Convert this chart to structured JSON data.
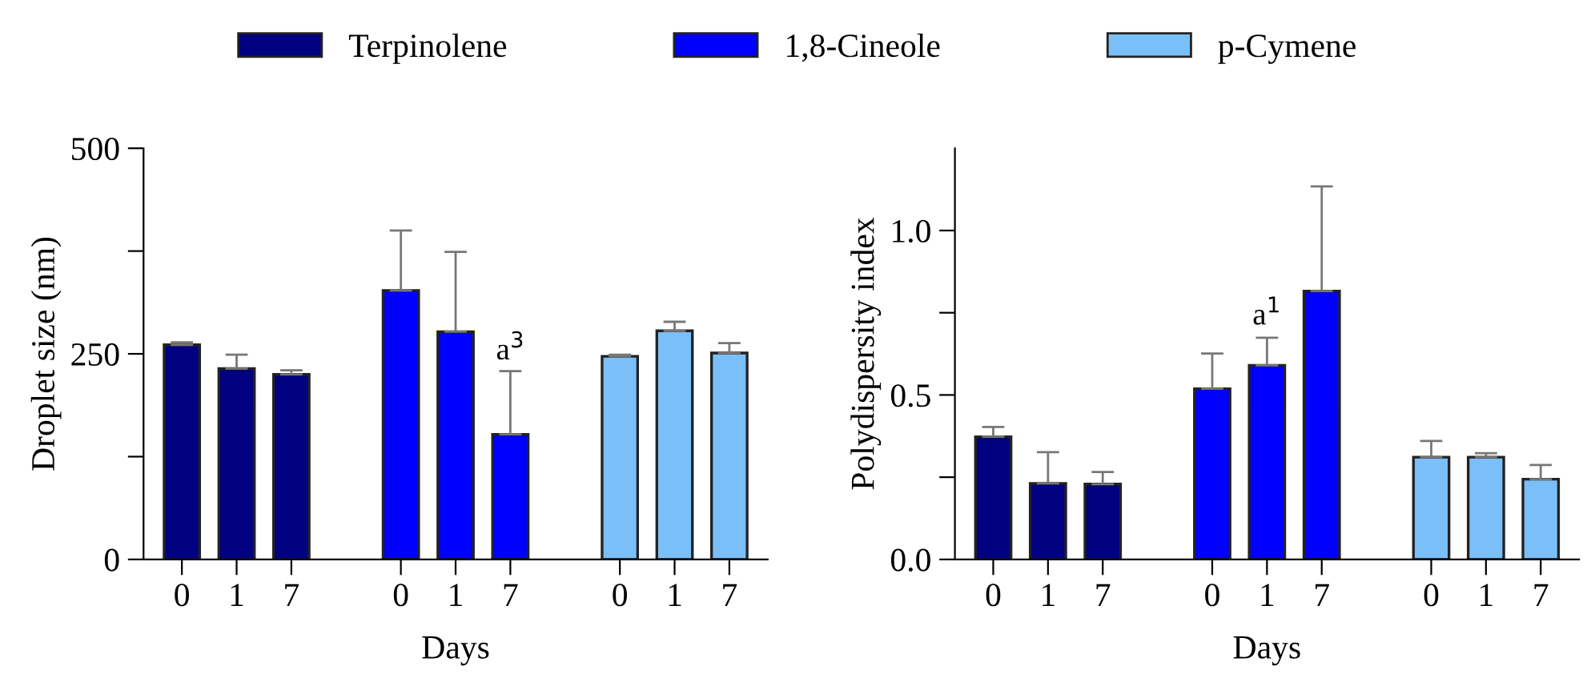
{
  "chart_data": [
    {
      "type": "bar",
      "categories": [
        "0",
        "1",
        "7",
        null,
        "0",
        "1",
        "7",
        null,
        "0",
        "1",
        "7"
      ],
      "xlabel": "Days",
      "ylabel": "Droplet size (nm)",
      "ylim": [
        0,
        500
      ],
      "yticks": [
        0,
        {
          "value": 125,
          "label": null
        },
        250,
        {
          "value": 375,
          "label": null
        },
        500
      ],
      "grid": false,
      "legend": "top",
      "series": [
        {
          "name": "Terpinolene",
          "color": "#000080",
          "values": [
            261,
            232,
            225,
            null,
            null,
            null,
            null,
            null,
            null,
            null,
            null
          ],
          "errors": [
            [
              261,
              264
            ],
            [
              232,
              249
            ],
            [
              225,
              230
            ],
            null,
            null,
            null,
            null,
            null,
            null,
            null,
            null
          ]
        },
        {
          "name": "1,8-Cineole",
          "color": "#0000ff",
          "values": [
            null,
            null,
            null,
            null,
            327,
            277,
            152,
            null,
            null,
            null,
            null
          ],
          "errors": [
            null,
            null,
            null,
            null,
            [
              327,
              400
            ],
            [
              277,
              374
            ],
            [
              152,
              229
            ],
            null,
            null,
            null,
            null
          ]
        },
        {
          "name": "p-Cymene",
          "color": "#7abff7",
          "values": [
            null,
            null,
            null,
            null,
            null,
            null,
            null,
            null,
            247,
            278,
            251
          ],
          "errors": [
            null,
            null,
            null,
            null,
            null,
            null,
            null,
            null,
            [
              247,
              249
            ],
            [
              278,
              289
            ],
            [
              251,
              263
            ]
          ]
        }
      ],
      "annotations": [
        "a$^{3}$"
      ]
    },
    {
      "type": "bar",
      "categories": [
        "0",
        "1",
        "7",
        null,
        "0",
        "1",
        "7",
        null,
        "0",
        "1",
        "7"
      ],
      "xlabel": "Days",
      "ylabel": "Polydispersity index",
      "ylim": [
        0,
        1.25
      ],
      "yticks": [
        {
          "value": 0,
          "label": "0.0"
        },
        {
          "value": 0.25,
          "label": null
        },
        0.5,
        {
          "value": 0.75,
          "label": null
        },
        {
          "value": 1,
          "label": "1.0"
        }
      ],
      "grid": false,
      "series": [
        {
          "color": "#000080",
          "values": [
            0.373,
            0.231,
            0.229,
            null,
            null,
            null,
            null,
            null,
            null,
            null,
            null
          ],
          "errors": [
            [
              0.373,
              0.403
            ],
            [
              0.231,
              0.326
            ],
            [
              0.229,
              0.266
            ],
            null,
            null,
            null,
            null,
            null,
            null,
            null,
            null
          ]
        },
        {
          "color": "#0000ff",
          "values": [
            null,
            null,
            null,
            null,
            0.519,
            0.59,
            0.816,
            null,
            null,
            null,
            null
          ],
          "errors": [
            null,
            null,
            null,
            null,
            [
              0.519,
              0.626
            ],
            [
              0.59,
              0.674
            ],
            [
              0.816,
              1.134
            ],
            null,
            null,
            null,
            null
          ]
        },
        {
          "color": "#7abff7",
          "values": [
            null,
            null,
            null,
            null,
            null,
            null,
            null,
            null,
            0.311,
            0.311,
            0.244
          ],
          "errors": [
            null,
            null,
            null,
            null,
            null,
            null,
            null,
            null,
            [
              0.311,
              0.36
            ],
            [
              0.311,
              0.323
            ],
            [
              0.244,
              0.287
            ]
          ]
        }
      ],
      "annotations": [
        "a$^{1}$"
      ]
    }
  ]
}
